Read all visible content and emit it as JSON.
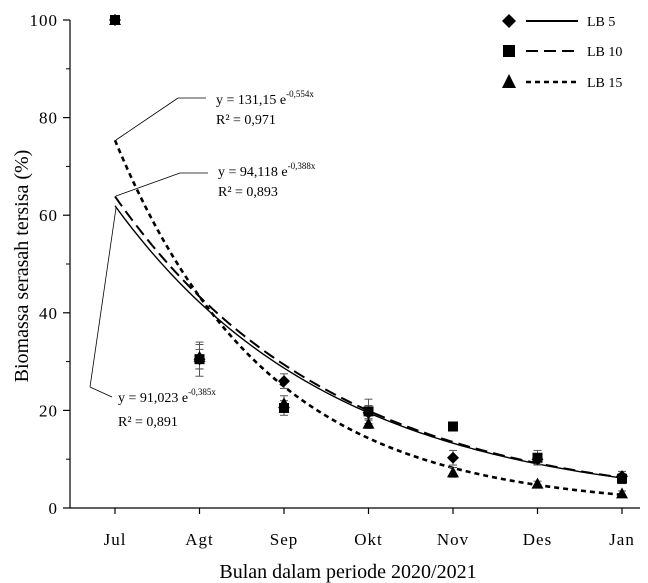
{
  "chart_data": {
    "type": "scatter",
    "xlabel": "Bulan dalam periode 2020/2021",
    "ylabel": "Biomassa serasah tersisa (%)",
    "categories": [
      "Jul",
      "Agt",
      "Sep",
      "Okt",
      "Nov",
      "Des",
      "Jan"
    ],
    "ylim": [
      0,
      100
    ],
    "yticks": [
      0,
      20,
      40,
      60,
      80,
      100
    ],
    "grid": false,
    "legend_position": "top-right",
    "series": [
      {
        "name": "LB 5",
        "marker": "diamond",
        "line_style": "solid",
        "values": [
          100,
          30.5,
          26,
          19.5,
          10.3,
          10,
          6.5
        ],
        "errors": [
          0,
          2,
          1.5,
          1.5,
          1.5,
          1,
          1
        ],
        "fit": {
          "a": 91.023,
          "b": -0.385,
          "equation": "y = 91,023 e",
          "exponent": "-0,385x",
          "r2": "R² = 0,891"
        }
      },
      {
        "name": "LB 10",
        "marker": "square",
        "line_style": "dashed",
        "values": [
          100,
          30.5,
          20.5,
          19.8,
          16.7,
          10.3,
          6
        ],
        "errors": [
          0,
          3.5,
          1.5,
          2.5,
          0.5,
          1.5,
          1
        ],
        "fit": {
          "a": 94.118,
          "b": -0.388,
          "equation": "y = 94,118 e",
          "exponent": "-0,388x",
          "r2": "R² = 0,893"
        }
      },
      {
        "name": "LB 15",
        "marker": "triangle",
        "line_style": "dotted",
        "values": [
          100,
          31,
          21.5,
          17.3,
          7.3,
          5,
          3
        ],
        "errors": [
          0,
          2.5,
          1.5,
          1,
          1,
          0.5,
          0.5
        ],
        "fit": {
          "a": 131.15,
          "b": -0.554,
          "equation": "y = 131,15 e",
          "exponent": "-0,554x",
          "r2": "R² = 0,971"
        }
      }
    ]
  }
}
